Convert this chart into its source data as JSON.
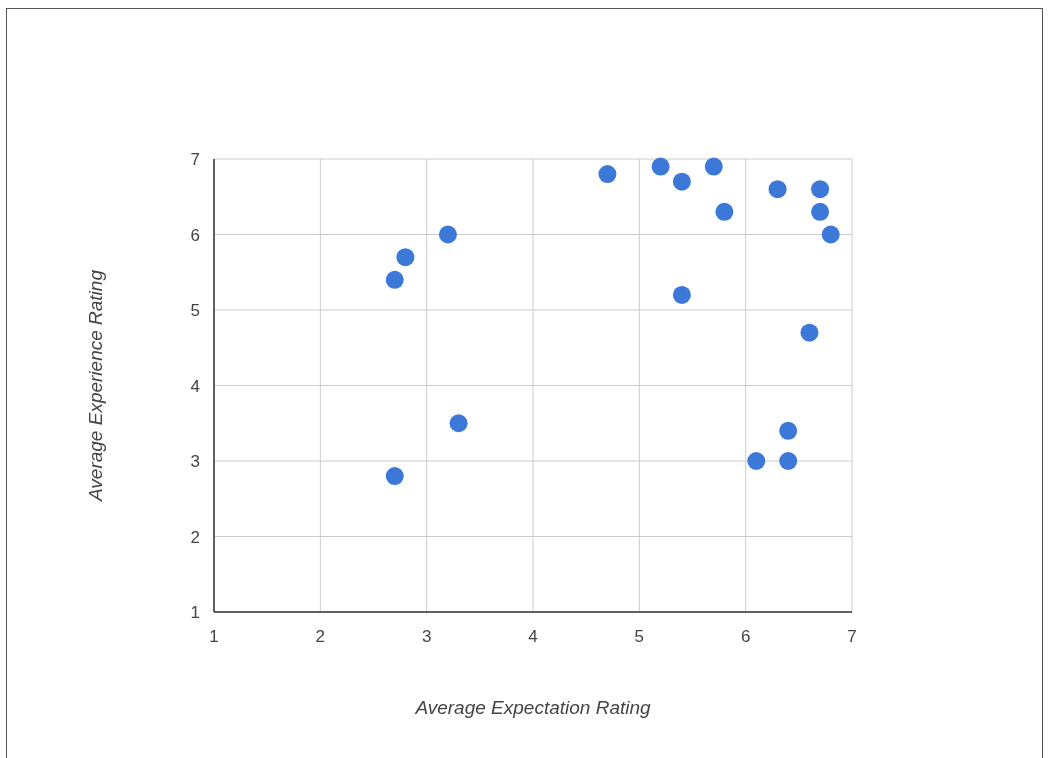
{
  "chart_data": {
    "type": "scatter",
    "xlabel": "Average Expectation Rating",
    "ylabel": "Average Experience Rating",
    "x": [
      4.7,
      5.2,
      5.4,
      5.7,
      5.8,
      6.3,
      6.7,
      6.7,
      6.8,
      2.8,
      2.7,
      3.2,
      5.4,
      6.6,
      3.3,
      6.4,
      6.1,
      6.4,
      2.7
    ],
    "series": [
      {
        "color": "#3c78d8",
        "values": [
          6.8,
          6.9,
          6.7,
          6.9,
          6.3,
          6.6,
          6.6,
          6.3,
          6.0,
          5.7,
          5.4,
          6.0,
          5.2,
          4.7,
          3.5,
          3.4,
          3.0,
          3.0,
          2.8
        ]
      }
    ],
    "xlim": [
      1,
      7
    ],
    "xticks": [
      1,
      2,
      3,
      4,
      5,
      6,
      7
    ],
    "ylim": [
      1,
      7
    ],
    "yticks": [
      1,
      2,
      3,
      4,
      5,
      6,
      7
    ],
    "grid": true,
    "marker": "circle"
  }
}
